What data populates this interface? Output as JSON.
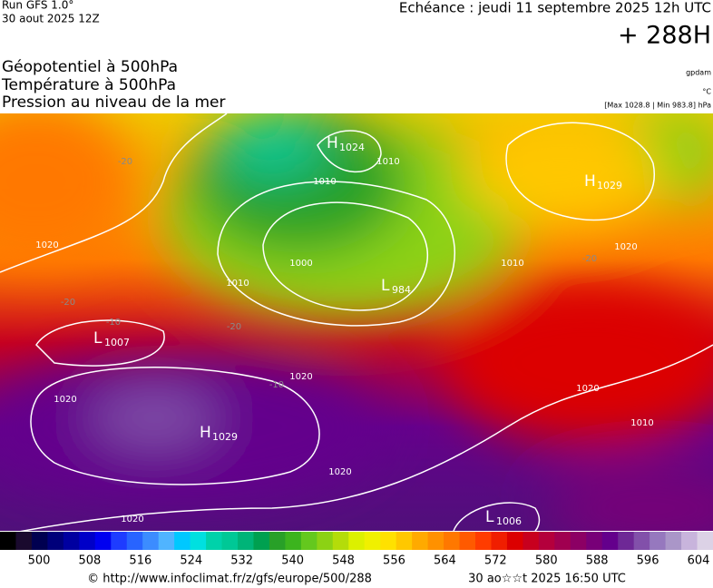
{
  "header": {
    "run": "Run GFS 1.0°",
    "run_date": "30 aout 2025 12Z",
    "valid": "Echéance : jeudi 11 septembre 2025 12h UTC",
    "lead": "+ 288H"
  },
  "fields": {
    "lines": [
      "Géopotentiel à 500hPa",
      "Température à 500hPa",
      "Pression au niveau de la mer"
    ],
    "units": [
      "gpdam",
      "°C",
      "[Max 1028.8 | Min 983.8] hPa"
    ]
  },
  "map": {
    "centers": [
      {
        "letter": "H",
        "value": "1024"
      },
      {
        "letter": "H",
        "value": "1029"
      },
      {
        "letter": "L",
        "value": "984"
      },
      {
        "letter": "L",
        "value": "1007"
      },
      {
        "letter": "H",
        "value": "1029"
      },
      {
        "letter": "L",
        "value": "1006"
      }
    ],
    "isobars": [
      "1020",
      "1010",
      "1000",
      "1010",
      "1020",
      "1020",
      "1020",
      "1020",
      "1020",
      "1010",
      "1020",
      "1010",
      "1010"
    ],
    "temperatures": [
      "-20",
      "-20",
      "-10",
      "-20",
      "-20",
      "-10"
    ]
  },
  "colorbar": {
    "ticks": [
      "500",
      "508",
      "516",
      "524",
      "532",
      "540",
      "548",
      "556",
      "564",
      "572",
      "580",
      "588",
      "596",
      "604"
    ],
    "palette": [
      "#000000",
      "#1a0a2e",
      "#000050",
      "#00007a",
      "#0000a0",
      "#0000c8",
      "#0000f0",
      "#1e3cff",
      "#2864ff",
      "#3c8cff",
      "#50b4ff",
      "#00c8ff",
      "#00e0e0",
      "#00d2aa",
      "#00c896",
      "#00b478",
      "#00a050",
      "#28a028",
      "#3cb41e",
      "#64c81e",
      "#8cd214",
      "#b4dc0a",
      "#dcf000",
      "#f0f000",
      "#ffe100",
      "#ffc800",
      "#ffaa00",
      "#ff9100",
      "#ff7800",
      "#ff5a00",
      "#ff3c00",
      "#f01e00",
      "#dc0000",
      "#c8001e",
      "#b4003c",
      "#a00050",
      "#8c0064",
      "#780078",
      "#64008c",
      "#6e2896",
      "#8250aa",
      "#9678be",
      "#aa96c8",
      "#c8b4dc",
      "#dcd2e6"
    ]
  },
  "footer": {
    "source": "© http://www.infoclimat.fr/z/gfs/europe/500/288",
    "generated": "30 ao☆☆t 2025 16:50 UTC"
  }
}
